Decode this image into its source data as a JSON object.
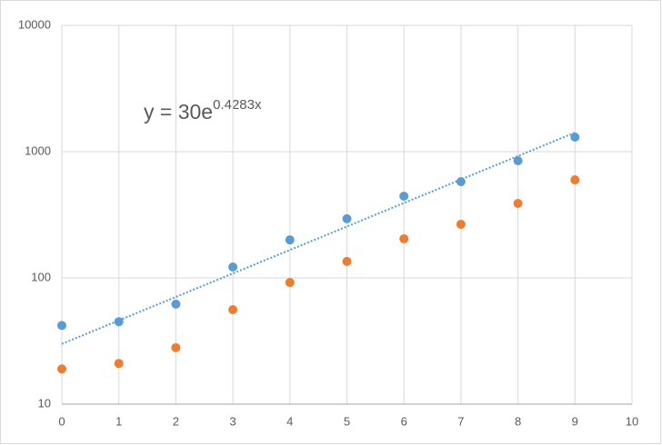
{
  "chart_data": {
    "type": "scatter",
    "x": [
      0,
      1,
      2,
      3,
      4,
      5,
      6,
      7,
      8,
      9
    ],
    "series": [
      {
        "color": "#5b9bd5",
        "values": [
          42,
          45,
          62,
          122,
          200,
          294,
          444,
          579,
          847,
          1303
        ]
      },
      {
        "color": "#ed7d31",
        "values": [
          19,
          21,
          28,
          56,
          92,
          135,
          204,
          266,
          389,
          598
        ]
      }
    ],
    "trendline": {
      "coefficient": 30,
      "exponent": 0.4283,
      "color": "#5b9bd5",
      "xlim": [
        0,
        9
      ]
    },
    "annotation": {
      "base": "y = 30e",
      "superscript": "0.4283x"
    },
    "xlim": [
      0,
      10
    ],
    "xticks": [
      0,
      1,
      2,
      3,
      4,
      5,
      6,
      7,
      8,
      9,
      10
    ],
    "ylim": [
      10,
      10000
    ],
    "yticks": [
      10,
      100,
      1000,
      10000
    ],
    "log_y": true,
    "grid": true
  }
}
